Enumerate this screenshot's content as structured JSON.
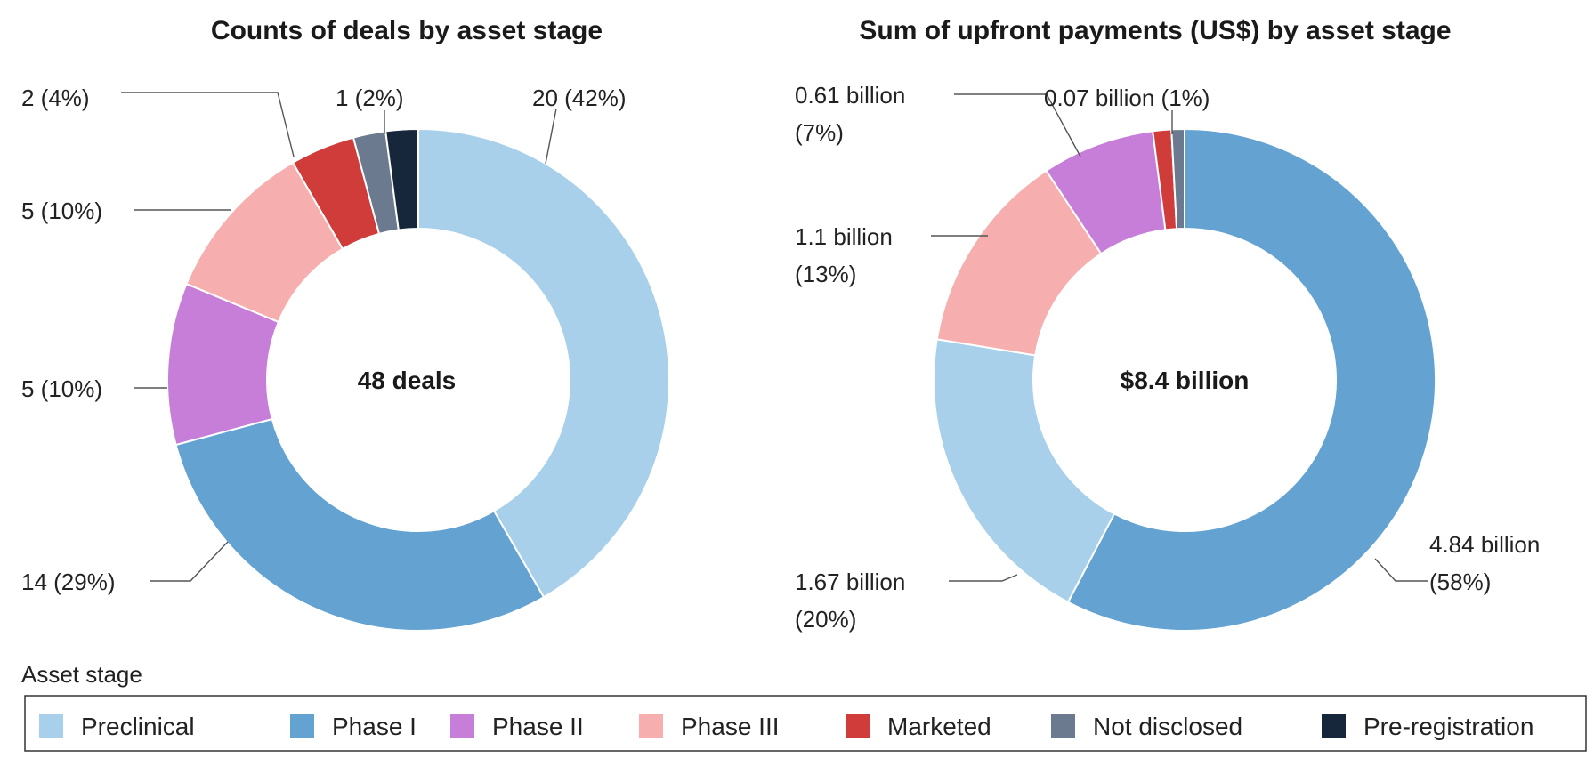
{
  "chart_data": [
    {
      "type": "pie",
      "variant": "donut",
      "title": "Counts of deals by asset stage",
      "center_label": "48 deals",
      "slices": [
        {
          "category": "Preclinical",
          "value": 20,
          "label": "20 (42%)"
        },
        {
          "category": "Phase I",
          "value": 14,
          "label": "14 (29%)"
        },
        {
          "category": "Phase II",
          "value": 5,
          "label": "5 (10%)"
        },
        {
          "category": "Phase III",
          "value": 5,
          "label": "5 (10%)"
        },
        {
          "category": "Marketed",
          "value": 2,
          "label": "2 (4%)"
        },
        {
          "category": "Not disclosed",
          "value": 1,
          "label": "1 (2%)"
        },
        {
          "category": "Pre-registration",
          "value": 1,
          "label": ""
        }
      ]
    },
    {
      "type": "pie",
      "variant": "donut",
      "title": "Sum of upfront payments (US$) by asset stage",
      "center_label": "$8.4 billion",
      "slices": [
        {
          "category": "Phase I",
          "value": 4.84,
          "label": "4.84 billion (58%)"
        },
        {
          "category": "Preclinical",
          "value": 1.67,
          "label": "1.67 billion (20%)"
        },
        {
          "category": "Phase III",
          "value": 1.1,
          "label": "1.1 billion (13%)"
        },
        {
          "category": "Phase II",
          "value": 0.61,
          "label": "0.61 billion (7%)"
        },
        {
          "category": "Marketed",
          "value": 0.1,
          "label": ""
        },
        {
          "category": "Not disclosed",
          "value": 0.07,
          "label": "0.07 billion (1%)"
        }
      ]
    }
  ],
  "legend": {
    "title": "Asset stage",
    "items": [
      {
        "name": "Preclinical",
        "color": "#a8d0ea"
      },
      {
        "name": "Phase I",
        "color": "#64a2d2"
      },
      {
        "name": "Phase II",
        "color": "#c67ed8"
      },
      {
        "name": "Phase III",
        "color": "#f7aeae"
      },
      {
        "name": "Marketed",
        "color": "#cf3c3a"
      },
      {
        "name": "Not disclosed",
        "color": "#6b7a8f"
      },
      {
        "name": "Pre-registration",
        "color": "#16263b"
      }
    ]
  }
}
